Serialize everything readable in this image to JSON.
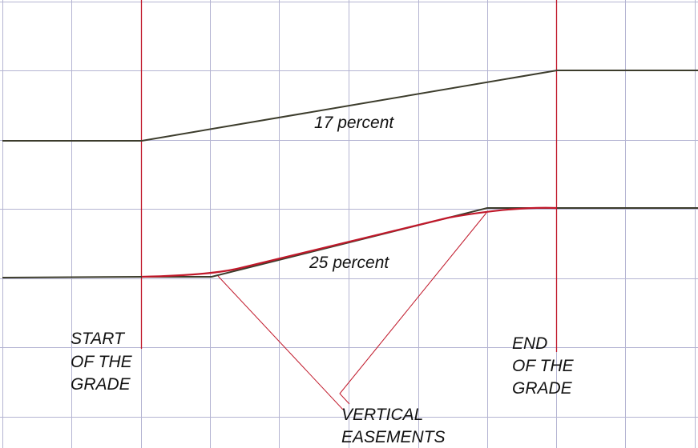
{
  "labels": {
    "upper_grade": "17 percent",
    "lower_grade": "25 percent",
    "start": [
      "START",
      "OF THE",
      "GRADE"
    ],
    "end": [
      "END",
      "OF THE",
      "GRADE"
    ],
    "easements": [
      "VERTICAL",
      "EASEMENTS"
    ]
  },
  "colors": {
    "grid": "#b4b4d2",
    "grade_line": "#3c3c2c",
    "marker": "#c0182a"
  }
}
